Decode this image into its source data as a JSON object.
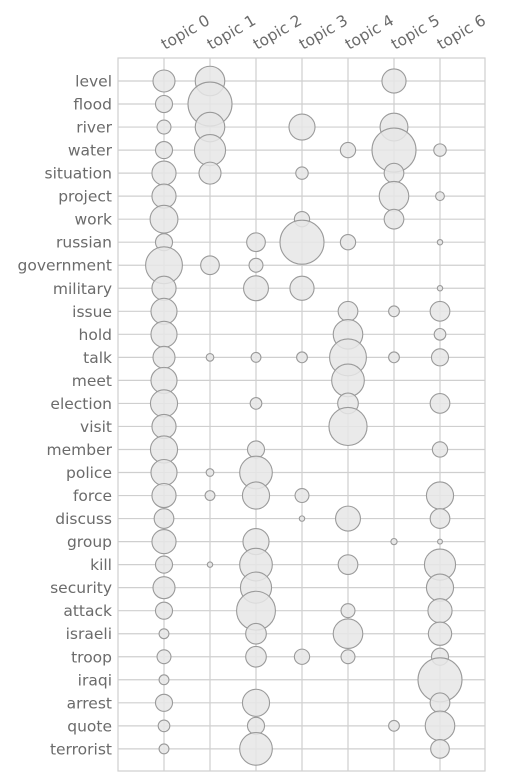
{
  "chart_data": {
    "type": "scatter",
    "subtype": "bubble-matrix",
    "title": "",
    "xlabel": "",
    "ylabel": "",
    "grid": true,
    "topics": [
      "topic 0",
      "topic 1",
      "topic 2",
      "topic 3",
      "topic 4",
      "topic 5",
      "topic 6"
    ],
    "words": [
      "level",
      "flood",
      "river",
      "water",
      "situation",
      "project",
      "work",
      "russian",
      "government",
      "military",
      "issue",
      "hold",
      "talk",
      "meet",
      "election",
      "visit",
      "member",
      "police",
      "force",
      "discuss",
      "group",
      "kill",
      "security",
      "attack",
      "israeli",
      "troop",
      "iraqi",
      "arrest",
      "quote",
      "terrorist"
    ],
    "values": [
      [
        0.25,
        0.45,
        0,
        0,
        0,
        0.3,
        0
      ],
      [
        0.15,
        1.0,
        0,
        0,
        0,
        0,
        0
      ],
      [
        0.1,
        0.45,
        0,
        0.35,
        0,
        0.4,
        0
      ],
      [
        0.15,
        0.5,
        0,
        0,
        0.12,
        1.0,
        0.08
      ],
      [
        0.3,
        0.25,
        0,
        0.08,
        0,
        0.2,
        0
      ],
      [
        0.3,
        0,
        0,
        0,
        0,
        0.45,
        0.04
      ],
      [
        0.4,
        0,
        0,
        0.12,
        0,
        0.2,
        0
      ],
      [
        0.15,
        0,
        0.18,
        1.0,
        0.12,
        0,
        0.015
      ],
      [
        0.7,
        0.18,
        0.1,
        0,
        0,
        0,
        0
      ],
      [
        0.3,
        0,
        0.32,
        0.3,
        0,
        0,
        0.015
      ],
      [
        0.35,
        0,
        0,
        0,
        0.2,
        0.06,
        0.2
      ],
      [
        0.35,
        0,
        0,
        0,
        0.45,
        0,
        0.07
      ],
      [
        0.25,
        0.03,
        0.05,
        0.06,
        0.7,
        0.06,
        0.15
      ],
      [
        0.35,
        0,
        0,
        0,
        0.55,
        0,
        0
      ],
      [
        0.38,
        0,
        0.07,
        0,
        0.22,
        0,
        0.2
      ],
      [
        0.3,
        0,
        0,
        0,
        0.75,
        0,
        0
      ],
      [
        0.38,
        0,
        0.15,
        0,
        0,
        0,
        0.12
      ],
      [
        0.35,
        0.03,
        0.55,
        0,
        0,
        0,
        0
      ],
      [
        0.3,
        0.05,
        0.38,
        0.1,
        0,
        0,
        0.38
      ],
      [
        0.2,
        0,
        0,
        0.015,
        0.32,
        0,
        0.2
      ],
      [
        0.3,
        0,
        0.35,
        0,
        0,
        0.02,
        0.012
      ],
      [
        0.15,
        0.015,
        0.55,
        0,
        0.2,
        0,
        0.5
      ],
      [
        0.25,
        0,
        0.5,
        0,
        0,
        0,
        0.38
      ],
      [
        0.15,
        0,
        0.78,
        0,
        0.1,
        0,
        0.3
      ],
      [
        0.05,
        0,
        0.22,
        0,
        0.45,
        0,
        0.28
      ],
      [
        0.1,
        0,
        0.22,
        0.12,
        0.1,
        0,
        0.15
      ],
      [
        0.05,
        0,
        0,
        0,
        0,
        0,
        1.0
      ],
      [
        0.15,
        0,
        0.38,
        0,
        0,
        0,
        0.2
      ],
      [
        0.07,
        0,
        0.15,
        0,
        0,
        0.06,
        0.45
      ],
      [
        0.05,
        0,
        0.55,
        0,
        0,
        0,
        0.18
      ]
    ]
  }
}
